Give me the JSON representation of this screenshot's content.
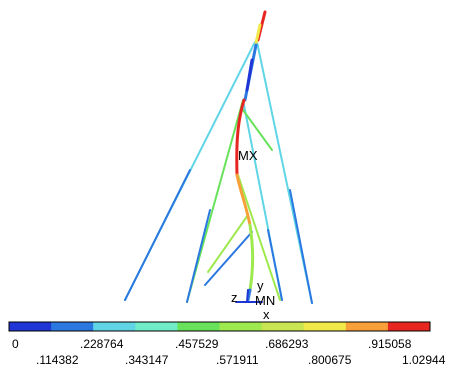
{
  "labels": {
    "max": "MX",
    "min": "MN",
    "axis_x": "x",
    "axis_y": "y",
    "axis_z": "z"
  },
  "legend": {
    "colors": [
      "#1f35d6",
      "#2b78e0",
      "#5fd5e6",
      "#70ecc9",
      "#67e25a",
      "#9ee94e",
      "#c9e552",
      "#f1e84a",
      "#f7a03a",
      "#e82621"
    ],
    "top_ticks": [
      "0",
      ".228764",
      ".457529",
      ".686293",
      ".915058"
    ],
    "bottom_ticks": [
      ".114382",
      ".343147",
      ".571911",
      ".800675",
      "1.02944"
    ]
  },
  "theme": {
    "background": "#ffffff"
  }
}
